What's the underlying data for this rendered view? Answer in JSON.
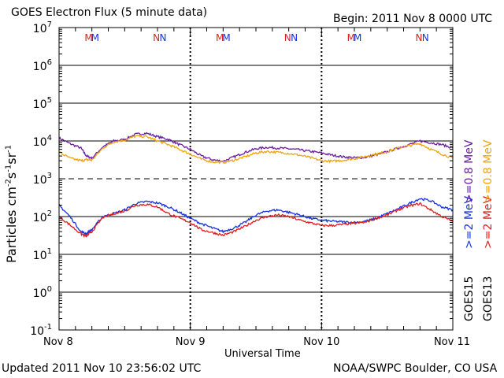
{
  "header": {
    "title": "GOES Electron Flux (5 minute data)",
    "begin": "Begin: 2011 Nov 8 0000 UTC"
  },
  "footer": {
    "updated": "Updated 2011 Nov 10 23:56:02 UTC",
    "credit": "NOAA/SWPC Boulder, CO USA"
  },
  "legend": {
    "goes15": "GOES15",
    "goes13": "GOES13",
    "g15_ge2": ">=2",
    "g15_ge08": ">=0.8",
    "g13_ge2": ">=2",
    "g13_ge08": ">=0.8",
    "mev1": "MeV",
    "mev2": "MeV",
    "mev3": "MeV",
    "mev4": "MeV"
  },
  "colors": {
    "goes15_ge2": "#1432e0",
    "goes15_ge08": "#6a1aa8",
    "goes13_ge2": "#e01c1c",
    "goes13_ge08": "#f0a30a",
    "m_marker": [
      "#e01c1c",
      "#1432e0"
    ],
    "n_marker": [
      "#e01c1c",
      "#1432e0"
    ]
  },
  "chart_data": {
    "type": "line",
    "title": "GOES Electron Flux (5 minute data)",
    "xlabel": "Universal Time",
    "ylabel": "Particles cm-2s-1sr-1",
    "x_unit": "hours since 2011 Nov 8 0000 UTC",
    "xlim": [
      0,
      72
    ],
    "ylim_log10": [
      -1,
      7
    ],
    "x_tick_labels": [
      {
        "t": 0,
        "label": "Nov 8"
      },
      {
        "t": 24,
        "label": "Nov 9"
      },
      {
        "t": 48,
        "label": "Nov 10"
      },
      {
        "t": 72,
        "label": "Nov 11"
      }
    ],
    "y_tick_labels": [
      {
        "exp": 7,
        "label": "10^7"
      },
      {
        "exp": 6,
        "label": "10^6"
      },
      {
        "exp": 5,
        "label": "10^5"
      },
      {
        "exp": 4,
        "label": "10^4"
      },
      {
        "exp": 3,
        "label": "10^3"
      },
      {
        "exp": 2,
        "label": "10^2"
      },
      {
        "exp": 1,
        "label": "10^1"
      },
      {
        "exp": 0,
        "label": "10^0"
      },
      {
        "exp": -1,
        "label": "10^-1"
      }
    ],
    "alert_threshold": 1000,
    "local_time_markers": [
      {
        "t": 5.4,
        "label": "M",
        "sat": "GOES13"
      },
      {
        "t": 6.6,
        "label": "M",
        "sat": "GOES15"
      },
      {
        "t": 17.8,
        "label": "N",
        "sat": "GOES13"
      },
      {
        "t": 19.0,
        "label": "N",
        "sat": "GOES15"
      },
      {
        "t": 29.4,
        "label": "M",
        "sat": "GOES13"
      },
      {
        "t": 30.6,
        "label": "M",
        "sat": "GOES15"
      },
      {
        "t": 41.8,
        "label": "N",
        "sat": "GOES13"
      },
      {
        "t": 43.0,
        "label": "N",
        "sat": "GOES15"
      },
      {
        "t": 53.4,
        "label": "M",
        "sat": "GOES13"
      },
      {
        "t": 54.6,
        "label": "M",
        "sat": "GOES15"
      },
      {
        "t": 65.8,
        "label": "N",
        "sat": "GOES13"
      },
      {
        "t": 67.0,
        "label": "N",
        "sat": "GOES15"
      }
    ],
    "series": [
      {
        "name": "GOES15 >=0.8 MeV",
        "color_key": "goes15_ge08",
        "t": [
          0,
          2,
          4,
          5,
          6,
          8,
          10,
          12,
          14,
          16,
          18,
          20,
          22,
          24,
          26,
          28,
          30,
          32,
          34,
          36,
          38,
          40,
          42,
          44,
          46,
          48,
          50,
          52,
          54,
          56,
          58,
          60,
          62,
          64,
          66,
          68,
          70,
          72
        ],
        "values": [
          12000,
          8500,
          6500,
          4000,
          3500,
          7000,
          10000,
          11000,
          15000,
          16000,
          13000,
          11000,
          8000,
          6000,
          4000,
          3200,
          2900,
          3800,
          5000,
          6200,
          6800,
          6500,
          6200,
          5800,
          5300,
          4800,
          4200,
          3800,
          3600,
          3700,
          4300,
          5200,
          6500,
          8000,
          10000,
          9000,
          8000,
          6500
        ]
      },
      {
        "name": "GOES13 >=0.8 MeV",
        "color_key": "goes13_ge08",
        "t": [
          0,
          2,
          4,
          5,
          6,
          8,
          10,
          12,
          14,
          16,
          18,
          20,
          22,
          24,
          26,
          28,
          30,
          32,
          34,
          36,
          38,
          40,
          42,
          44,
          46,
          48,
          50,
          52,
          54,
          56,
          58,
          60,
          62,
          64,
          66,
          68,
          70,
          72
        ],
        "values": [
          5000,
          3500,
          3000,
          3200,
          3100,
          6500,
          9500,
          10500,
          13500,
          13000,
          10000,
          8000,
          6000,
          4500,
          3300,
          2800,
          2700,
          3100,
          3800,
          4800,
          5300,
          5000,
          4700,
          4200,
          3600,
          3000,
          2900,
          3100,
          3400,
          3900,
          4500,
          5200,
          6500,
          7500,
          8500,
          6000,
          4500,
          3500
        ]
      },
      {
        "name": "GOES15 >=2 MeV",
        "color_key": "goes15_ge2",
        "t": [
          0,
          2,
          4,
          5,
          6,
          8,
          10,
          12,
          14,
          16,
          18,
          20,
          22,
          24,
          26,
          28,
          30,
          32,
          34,
          36,
          38,
          40,
          42,
          44,
          46,
          48,
          50,
          52,
          54,
          56,
          58,
          60,
          62,
          64,
          66,
          68,
          70,
          72
        ],
        "values": [
          200,
          100,
          40,
          35,
          45,
          100,
          120,
          150,
          220,
          250,
          230,
          180,
          130,
          90,
          65,
          50,
          40,
          50,
          70,
          110,
          140,
          150,
          130,
          110,
          90,
          80,
          75,
          72,
          70,
          75,
          90,
          120,
          160,
          220,
          300,
          260,
          180,
          150
        ]
      },
      {
        "name": "GOES13 >=2 MeV",
        "color_key": "goes13_ge2",
        "t": [
          0,
          2,
          4,
          5,
          6,
          8,
          10,
          12,
          14,
          16,
          18,
          20,
          22,
          24,
          26,
          28,
          30,
          32,
          34,
          36,
          38,
          40,
          42,
          44,
          46,
          48,
          50,
          52,
          54,
          56,
          58,
          60,
          62,
          64,
          66,
          68,
          70,
          72
        ],
        "values": [
          100,
          60,
          35,
          30,
          40,
          95,
          120,
          140,
          200,
          210,
          180,
          120,
          90,
          70,
          45,
          38,
          32,
          40,
          55,
          80,
          100,
          110,
          100,
          80,
          68,
          58,
          58,
          62,
          66,
          70,
          90,
          110,
          150,
          190,
          220,
          150,
          100,
          75
        ]
      }
    ]
  }
}
